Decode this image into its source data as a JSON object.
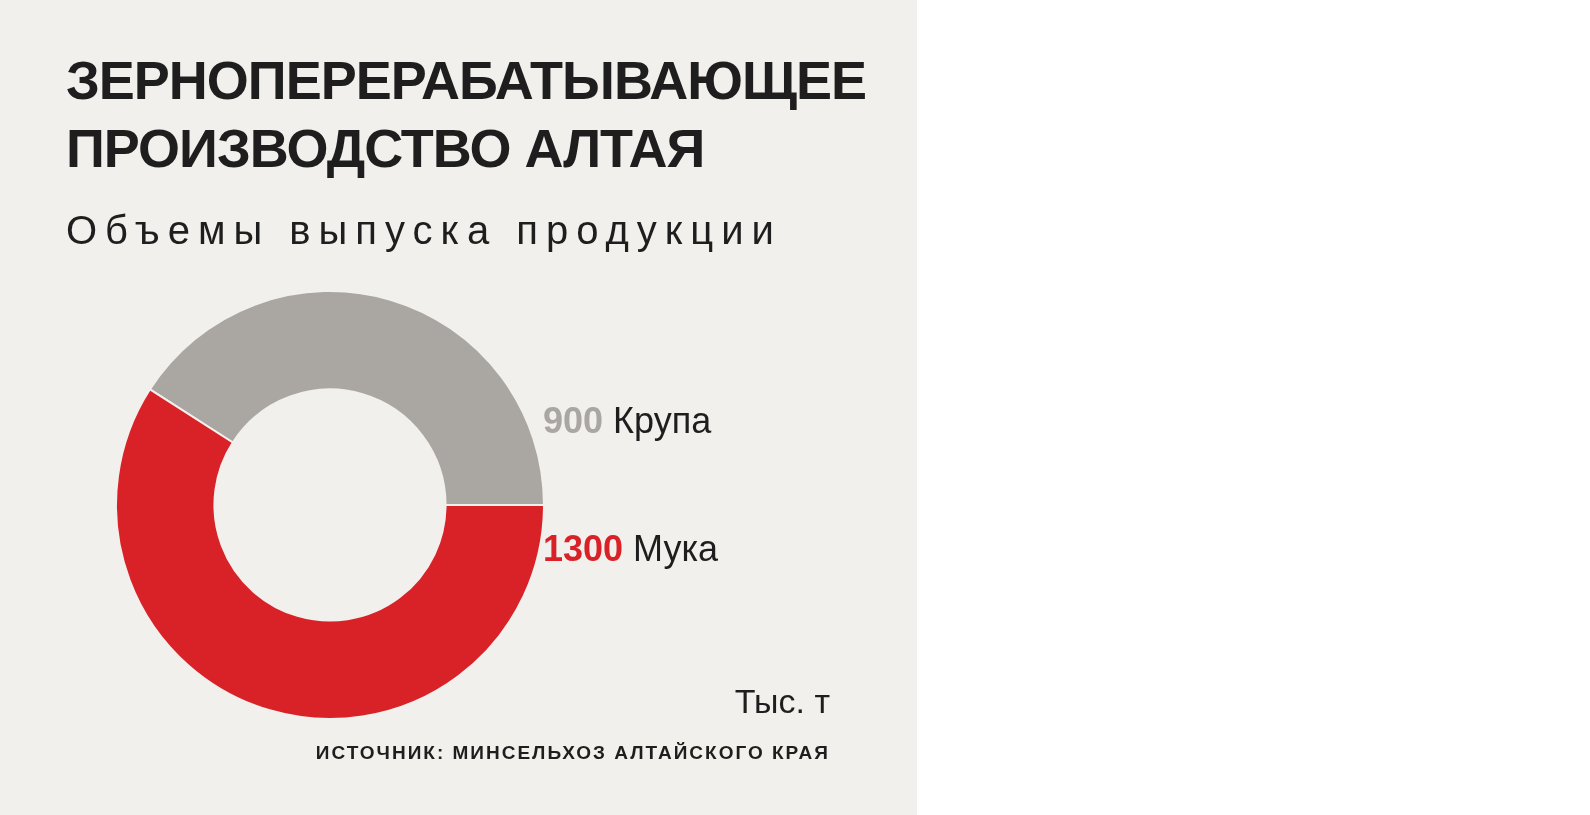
{
  "chart_data": {
    "type": "donut",
    "title": "ЗЕРНОПЕРЕРАБАТЫВАЮЩЕЕ ПРОИЗВОДСТВО АЛТАЯ",
    "subtitle": "Объемы выпуска продукции",
    "categories": [
      "Крупа",
      "Мука"
    ],
    "values": [
      900,
      1300
    ],
    "colors": [
      "#aaa6a2",
      "#d92128"
    ],
    "data_labels": true,
    "annotations": [
      "Тыс. т",
      "ИСТОЧНИК: МИНСЕЛЬХОЗ АЛТАЙСКОГО КРАЯ"
    ]
  }
}
